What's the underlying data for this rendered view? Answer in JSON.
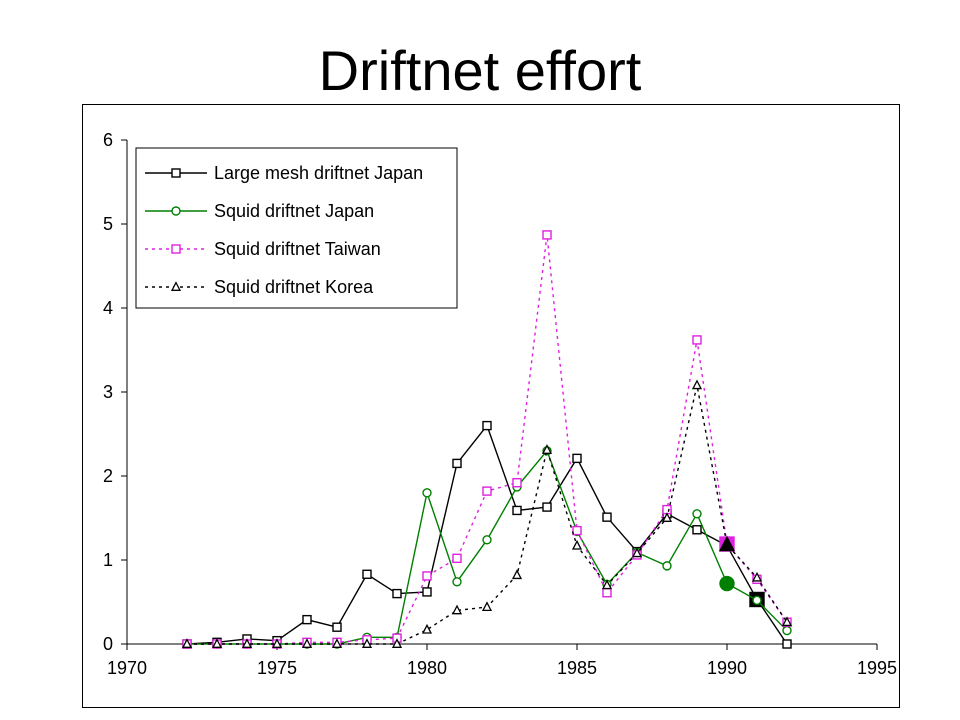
{
  "slide": {
    "title": "Driftnet effort"
  },
  "chart_data": {
    "type": "line",
    "title": "",
    "xlabel": "",
    "ylabel": "",
    "xlim": [
      1970,
      1995
    ],
    "ylim": [
      0,
      6
    ],
    "x_ticks": [
      "1970",
      "1975",
      "1980",
      "1985",
      "1990",
      "1995"
    ],
    "y_ticks": [
      "0",
      "1",
      "2",
      "3",
      "4",
      "5",
      "6"
    ],
    "grid": false,
    "legend": "top-left",
    "series": [
      {
        "name": "Large mesh driftnet Japan",
        "color": "#000000",
        "dash": "solid",
        "marker": "square",
        "x": [
          1972,
          1973,
          1974,
          1975,
          1976,
          1977,
          1978,
          1979,
          1980,
          1981,
          1982,
          1983,
          1984,
          1985,
          1986,
          1987,
          1988,
          1989,
          1990,
          1991,
          1992
        ],
        "y": [
          0.0,
          0.02,
          0.06,
          0.04,
          0.29,
          0.2,
          0.83,
          0.6,
          0.62,
          2.15,
          2.6,
          1.59,
          1.63,
          2.21,
          1.51,
          1.1,
          1.55,
          1.36,
          1.17,
          0.53,
          0.0
        ],
        "highlight_index": 19
      },
      {
        "name": "Squid driftnet Japan",
        "color": "#008000",
        "dash": "solid",
        "marker": "circle",
        "x": [
          1972,
          1973,
          1974,
          1975,
          1976,
          1977,
          1978,
          1979,
          1980,
          1981,
          1982,
          1983,
          1984,
          1985,
          1986,
          1987,
          1988,
          1989,
          1990,
          1991,
          1992
        ],
        "y": [
          0.0,
          0.0,
          0.0,
          0.0,
          0.0,
          0.0,
          0.08,
          0.08,
          1.8,
          0.74,
          1.24,
          1.87,
          2.3,
          1.34,
          0.71,
          1.09,
          0.93,
          1.55,
          0.72,
          0.52,
          0.16
        ],
        "highlight_index": 18
      },
      {
        "name": "Squid driftnet Taiwan",
        "color": "#e020e0",
        "dash": "dotted",
        "marker": "square",
        "x": [
          1972,
          1973,
          1974,
          1975,
          1976,
          1977,
          1978,
          1979,
          1980,
          1981,
          1982,
          1983,
          1984,
          1985,
          1986,
          1987,
          1988,
          1989,
          1990,
          1991,
          1992
        ],
        "y": [
          0.0,
          0.0,
          0.0,
          0.0,
          0.02,
          0.02,
          0.05,
          0.07,
          0.81,
          1.02,
          1.82,
          1.92,
          4.87,
          1.35,
          0.61,
          1.06,
          1.6,
          3.62,
          1.19,
          0.77,
          0.26
        ],
        "highlight_index": 18
      },
      {
        "name": "Squid driftnet Korea",
        "color": "#000000",
        "dash": "dotted",
        "marker": "triangle",
        "x": [
          1972,
          1973,
          1974,
          1975,
          1976,
          1977,
          1978,
          1979,
          1980,
          1981,
          1982,
          1983,
          1984,
          1985,
          1986,
          1987,
          1988,
          1989,
          1990,
          1991,
          1992
        ],
        "y": [
          0.0,
          0.0,
          0.0,
          0.0,
          0.0,
          0.0,
          0.0,
          0.0,
          0.17,
          0.4,
          0.44,
          0.82,
          2.31,
          1.17,
          0.7,
          1.08,
          1.5,
          3.08,
          1.18,
          0.79,
          0.26
        ],
        "highlight_index": 18
      }
    ]
  }
}
